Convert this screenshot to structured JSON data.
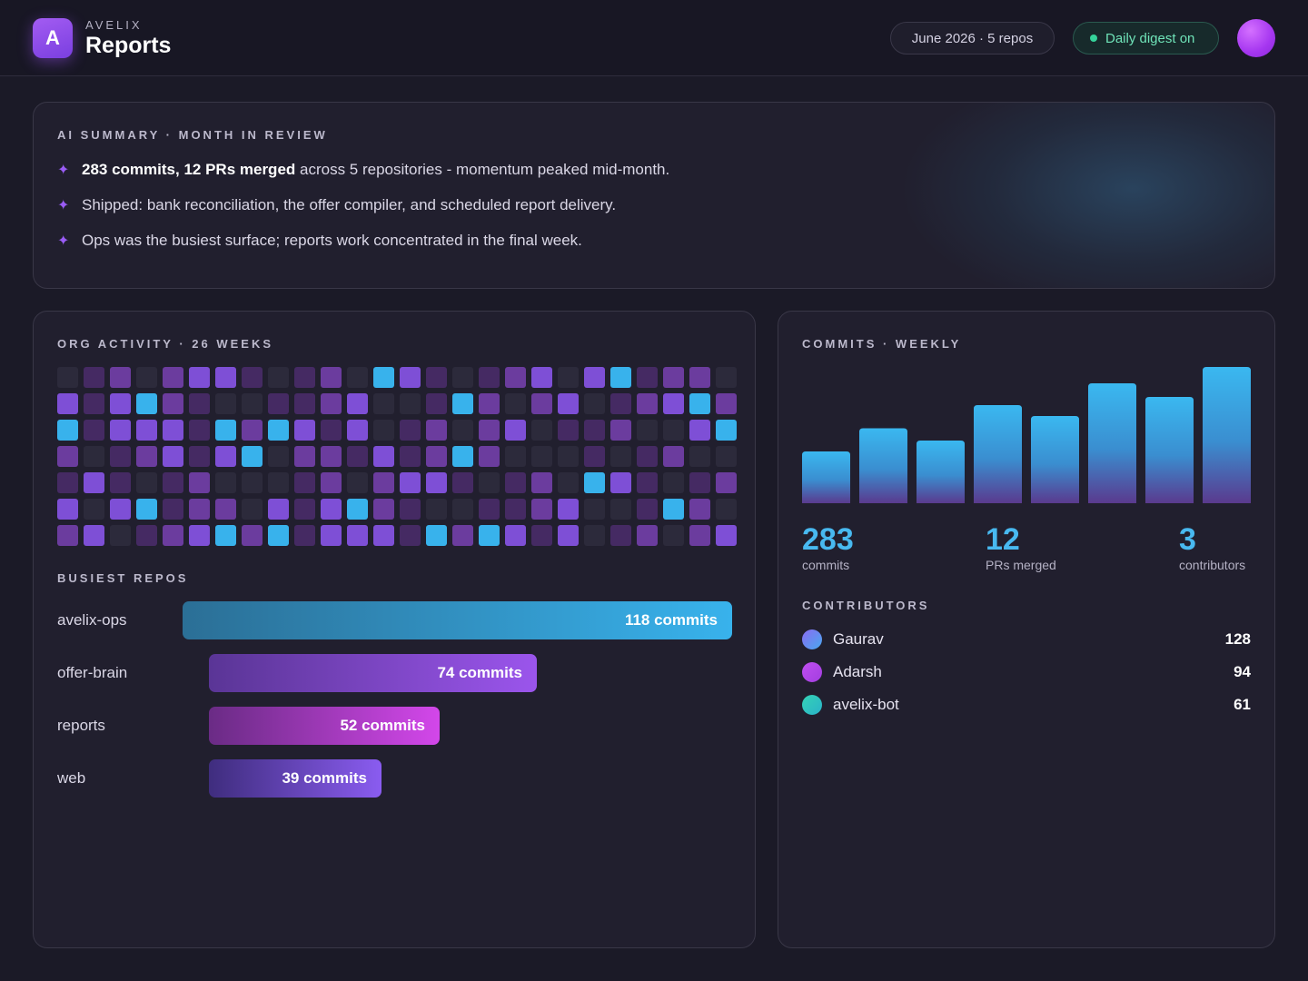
{
  "header": {
    "logo_letter": "A",
    "brand": "AVELIX",
    "title": "Reports",
    "range_pill": "June 2026 · 5 repos",
    "digest_pill": "Daily digest on"
  },
  "summary": {
    "label": "AI SUMMARY · MONTH IN REVIEW",
    "bullet_glyph": "✦",
    "bullets": [
      {
        "bold": "283 commits, 12 PRs merged",
        "rest": " across 5 repositories - momentum peaked mid-month."
      },
      {
        "bold": "",
        "rest": "Shipped: bank reconciliation, the offer compiler, and scheduled report delivery."
      },
      {
        "bold": "",
        "rest": "Ops was the busiest surface; reports work concentrated in the final week."
      }
    ]
  },
  "activity": {
    "label": "ORG ACTIVITY · 26 WEEKS",
    "level_colors": [
      "#2c2a3b",
      "#452a63",
      "#6b3c9e",
      "#7e4fd6",
      "#38b2ec"
    ],
    "grid": [
      [
        0,
        1,
        2,
        0,
        2,
        3,
        3,
        1,
        0,
        1,
        2,
        0,
        4,
        3,
        1,
        0,
        1,
        2,
        3,
        0,
        3,
        4,
        1,
        2,
        2,
        0
      ],
      [
        3,
        1,
        3,
        4,
        2,
        1,
        0,
        0,
        1,
        1,
        2,
        3,
        0,
        0,
        1,
        4,
        2,
        0,
        2,
        3,
        0,
        1,
        2,
        3,
        4,
        2
      ],
      [
        4,
        1,
        3,
        3,
        3,
        1,
        4,
        2,
        4,
        3,
        1,
        3,
        0,
        1,
        2,
        0,
        2,
        3,
        0,
        1,
        1,
        2,
        0,
        0,
        3,
        4
      ],
      [
        2,
        0,
        1,
        2,
        3,
        1,
        3,
        4,
        0,
        2,
        2,
        1,
        3,
        1,
        2,
        4,
        2,
        0,
        0,
        0,
        1,
        0,
        1,
        2,
        0,
        0
      ],
      [
        1,
        3,
        1,
        0,
        1,
        2,
        0,
        0,
        0,
        1,
        2,
        0,
        2,
        3,
        3,
        1,
        0,
        1,
        2,
        0,
        4,
        3,
        1,
        0,
        1,
        2
      ],
      [
        3,
        0,
        3,
        4,
        1,
        2,
        2,
        0,
        3,
        1,
        3,
        4,
        2,
        1,
        0,
        0,
        1,
        1,
        2,
        3,
        0,
        0,
        1,
        4,
        2,
        0
      ],
      [
        2,
        3,
        0,
        1,
        2,
        3,
        4,
        2,
        4,
        1,
        3,
        3,
        3,
        1,
        4,
        2,
        4,
        3,
        1,
        3,
        0,
        1,
        2,
        0,
        2,
        3
      ]
    ]
  },
  "repos": {
    "label": "BUSIEST REPOS",
    "items": [
      {
        "name": "avelix-ops",
        "value": 118,
        "text": "118 commits",
        "colors": [
          "#2b6f96",
          "#38b2ec"
        ]
      },
      {
        "name": "offer-brain",
        "value": 74,
        "text": "74 commits",
        "colors": [
          "#5a3596",
          "#9b55ec"
        ]
      },
      {
        "name": "reports",
        "value": 52,
        "text": "52 commits",
        "colors": [
          "#6a2b85",
          "#d347ea"
        ]
      },
      {
        "name": "web",
        "value": 39,
        "text": "39 commits",
        "colors": [
          "#3f2d7e",
          "#8a5cf0"
        ]
      }
    ]
  },
  "weekly": {
    "label": "COMMITS · WEEKLY",
    "gradient": [
      "#3ab8f0",
      "#5a3a8e"
    ],
    "chart_data": {
      "type": "bar",
      "categories": [
        "",
        "",
        "",
        "",
        "",
        "",
        "",
        ""
      ],
      "values": [
        38,
        55,
        46,
        72,
        64,
        88,
        78,
        100
      ],
      "ylim": [
        0,
        100
      ],
      "grid": false,
      "legend": "none"
    }
  },
  "stats": [
    {
      "value": "283",
      "label": "commits"
    },
    {
      "value": "12",
      "label": "PRs merged"
    },
    {
      "value": "3",
      "label": "contributors"
    }
  ],
  "contributors": {
    "label": "CONTRIBUTORS",
    "items": [
      {
        "name": "Gaurav",
        "count": "128",
        "color": "#8a6cf2",
        "color2": "#48a8f0"
      },
      {
        "name": "Adarsh",
        "count": "94",
        "color": "#c04ef0",
        "color2": "#a23ee0"
      },
      {
        "name": "avelix-bot",
        "count": "61",
        "color": "#35d3b5",
        "color2": "#2ab2c9"
      }
    ]
  }
}
